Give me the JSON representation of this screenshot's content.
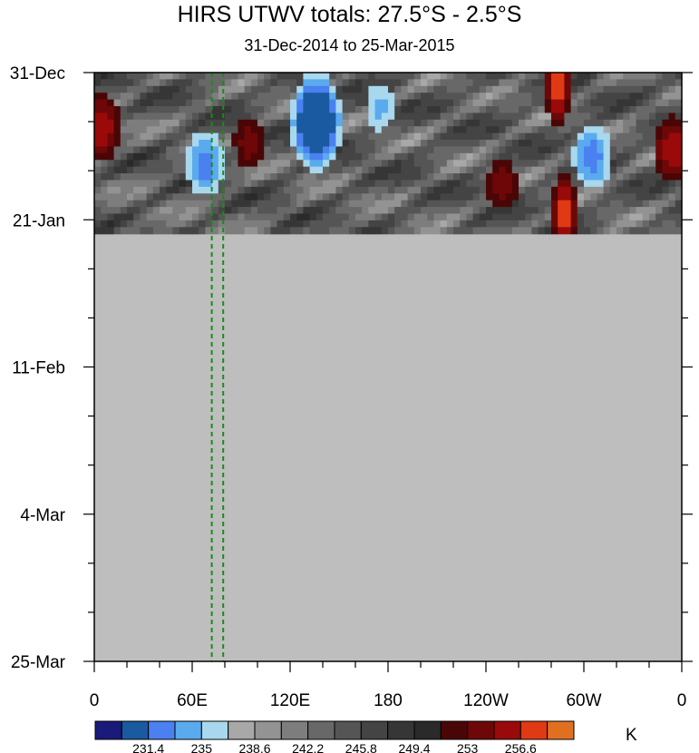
{
  "chart_data": {
    "type": "heatmap",
    "title": "HIRS UTWV totals: 27.5°S - 2.5°S",
    "subtitle": "31-Dec-2014 to 25-Mar-2015",
    "x_ticks": [
      "0",
      "60E",
      "120E",
      "180",
      "120W",
      "60W",
      "0"
    ],
    "x_tick_lons": [
      0,
      60,
      120,
      180,
      240,
      300,
      360
    ],
    "xlim": [
      0,
      360
    ],
    "y_ticks": [
      "31-Dec",
      "21-Jan",
      "11-Feb",
      "4-Mar",
      "25-Mar"
    ],
    "y_tick_days": [
      0,
      21,
      42,
      63,
      84
    ],
    "ylim": [
      0,
      84
    ],
    "data_end_day": 23,
    "missing_color": "#bebebe",
    "unit": "K",
    "colorbar_labels": [
      "231.4",
      "235",
      "238.6",
      "242.2",
      "245.8",
      "249.4",
      "253",
      "256.6"
    ],
    "colorbar_colors": [
      "#1a1a7a",
      "#1a5aa0",
      "#4a80f0",
      "#5aaaee",
      "#a8d8ee",
      "#a8a8a8",
      "#939393",
      "#7d7d7d",
      "#686868",
      "#555555",
      "#444444",
      "#363636",
      "#2a2a2a",
      "#4a0606",
      "#6e0808",
      "#9a0a0a",
      "#e03a14",
      "#e07020"
    ],
    "reference_lines": {
      "lons": [
        72,
        79
      ],
      "color": "#1a8a1a",
      "style": "dashed"
    },
    "features": [
      {
        "type": "moist",
        "lon": 136,
        "day": 8.5,
        "intensity": "very high"
      },
      {
        "type": "moist",
        "lon": 136,
        "day": 5,
        "intensity": "high"
      },
      {
        "type": "moist",
        "lon": 68,
        "day": 13,
        "intensity": "high"
      },
      {
        "type": "moist",
        "lon": 305,
        "day": 12,
        "intensity": "high"
      },
      {
        "type": "moist",
        "lon": 175,
        "day": 5,
        "intensity": "moderate"
      },
      {
        "type": "dry",
        "lon": 284,
        "day": 2,
        "intensity": "very high"
      },
      {
        "type": "dry",
        "lon": 288,
        "day": 20,
        "intensity": "very high"
      },
      {
        "type": "dry",
        "lon": 355,
        "day": 11,
        "intensity": "high"
      },
      {
        "type": "dry",
        "lon": 4,
        "day": 8,
        "intensity": "high"
      },
      {
        "type": "dry",
        "lon": 95,
        "day": 10,
        "intensity": "moderate"
      },
      {
        "type": "dry",
        "lon": 250,
        "day": 16,
        "intensity": "moderate"
      }
    ]
  }
}
